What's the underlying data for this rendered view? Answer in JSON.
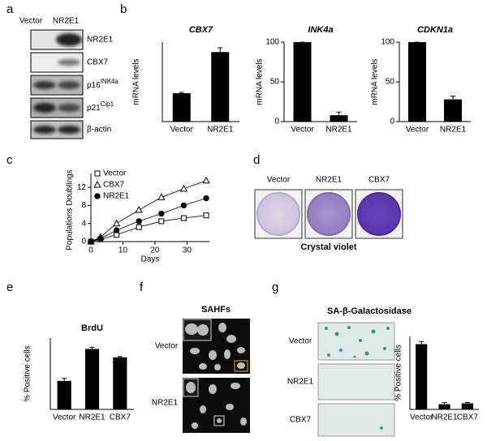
{
  "panel_letters": [
    "a",
    "b",
    "c",
    "d",
    "e",
    "f",
    "g"
  ],
  "blot": {
    "columns": [
      "Vector",
      "NR2E1"
    ],
    "rows": [
      {
        "label": "NR2E1"
      },
      {
        "label": "CBX7"
      },
      {
        "label": "p16",
        "sup": "INK4a"
      },
      {
        "label": "p21",
        "sup": "Cip1"
      },
      {
        "label": "β-actin"
      }
    ]
  },
  "crystal_violet": {
    "labels": [
      "Vector",
      "NR2E1",
      "CBX7"
    ],
    "caption": "Crystal violet"
  },
  "sahf": {
    "title": "SAHFs",
    "labels": [
      "Vector",
      "NR2E1"
    ]
  },
  "sa_gal": {
    "title": "SA-β-Galactosidase",
    "labels": [
      "Vector",
      "NR2E1",
      "CBX7"
    ]
  },
  "chart_data": [
    {
      "type": "bar",
      "title": "CBX7",
      "ylabel": "mRNA levels",
      "categories": [
        "Vector",
        "NR2E1"
      ],
      "values": [
        100,
        245
      ],
      "errors": [
        3,
        15
      ],
      "ylim": [
        0,
        280
      ],
      "color": "#000000"
    },
    {
      "type": "bar",
      "title": "INK4a",
      "ylabel": "mRNA levels",
      "categories": [
        "Vector",
        "NR2E1"
      ],
      "values": [
        100,
        8
      ],
      "errors": [
        0,
        4
      ],
      "ylim": [
        0,
        100
      ],
      "yticks": [
        0,
        50,
        100
      ],
      "color": "#000000"
    },
    {
      "type": "bar",
      "title": "CDKN1a",
      "ylabel": "mRNA levels",
      "categories": [
        "Vector",
        "NR2E1"
      ],
      "values": [
        100,
        28
      ],
      "errors": [
        0,
        4
      ],
      "ylim": [
        0,
        100
      ],
      "yticks": [
        0,
        50,
        100
      ],
      "color": "#000000"
    },
    {
      "type": "line",
      "xlabel": "Days",
      "ylabel": "Populations Doublings",
      "x": [
        0,
        3,
        8,
        15,
        22,
        29,
        36
      ],
      "xlim": [
        0,
        37
      ],
      "xticks": [
        0,
        10,
        20,
        30
      ],
      "ylim": [
        0,
        14
      ],
      "yticks": [
        0,
        4,
        8,
        12
      ],
      "legend": "upper left",
      "series": [
        {
          "name": "Vector",
          "marker": "square",
          "filled": false,
          "color": "#000000",
          "values": [
            0,
            0.5,
            1.5,
            3.2,
            4.5,
            5.2,
            5.8
          ]
        },
        {
          "name": "CBX7",
          "marker": "triangle",
          "filled": false,
          "color": "#000000",
          "values": [
            0,
            1,
            4,
            7,
            9.8,
            11.7,
            13.5
          ]
        },
        {
          "name": "NR2E1",
          "marker": "circle",
          "filled": true,
          "color": "#000000",
          "values": [
            0,
            0.7,
            2.5,
            4.5,
            6.2,
            8,
            9.6
          ]
        }
      ]
    },
    {
      "type": "bar",
      "title": "BrdU",
      "ylabel": "% Positive cells",
      "categories": [
        "Vector",
        "NR2E1",
        "CBX7"
      ],
      "values": [
        34,
        72,
        62
      ],
      "errors": [
        3,
        2,
        1
      ],
      "ylim": [
        0,
        85
      ],
      "color": "#000000"
    },
    {
      "type": "bar",
      "ylabel": "% Positive cells",
      "categories": [
        "Vector",
        "NR2E1",
        "CBX7"
      ],
      "values": [
        76,
        6,
        7
      ],
      "errors": [
        3,
        2,
        1
      ],
      "ylim": [
        0,
        85
      ],
      "color": "#000000"
    }
  ]
}
